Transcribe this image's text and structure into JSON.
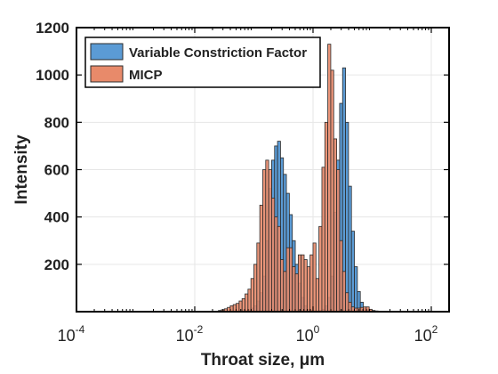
{
  "chart_data": {
    "type": "bar",
    "subtype": "overlaid-histogram",
    "title": "",
    "xlabel": "Throat size,  μm",
    "ylabel": "Intensity",
    "xscale": "log",
    "xlim": [
      0.0001,
      200
    ],
    "ylim": [
      0,
      1200
    ],
    "grid": true,
    "legend_position": "top-left",
    "x_ticks": [
      {
        "value": 0.0001,
        "base": "10",
        "exp": "-4"
      },
      {
        "value": 0.01,
        "base": "10",
        "exp": "-2"
      },
      {
        "value": 1,
        "base": "10",
        "exp": "0"
      },
      {
        "value": 100,
        "base": "10",
        "exp": "2"
      }
    ],
    "y_ticks": [
      {
        "value": 200,
        "label": "200"
      },
      {
        "value": 400,
        "label": "400"
      },
      {
        "value": 600,
        "label": "600"
      },
      {
        "value": 800,
        "label": "800"
      },
      {
        "value": 1000,
        "label": "1000"
      },
      {
        "value": 1200,
        "label": "1200"
      }
    ],
    "bin_edges": [
      0.01,
      0.01122,
      0.01259,
      0.01413,
      0.01585,
      0.01778,
      0.01995,
      0.02239,
      0.02512,
      0.02818,
      0.03162,
      0.03548,
      0.03981,
      0.04467,
      0.05012,
      0.05623,
      0.0631,
      0.07079,
      0.07943,
      0.08913,
      0.1,
      0.1122,
      0.1259,
      0.1413,
      0.1585,
      0.1778,
      0.1995,
      0.2239,
      0.2512,
      0.2818,
      0.3162,
      0.3548,
      0.3981,
      0.4467,
      0.5012,
      0.5623,
      0.631,
      0.7079,
      0.7943,
      0.8913,
      1.0,
      1.122,
      1.259,
      1.413,
      1.585,
      1.778,
      1.995,
      2.239,
      2.512,
      2.818,
      3.162,
      3.548,
      3.981,
      4.467,
      5.012,
      5.623,
      6.31,
      7.079,
      7.943,
      8.913,
      10.0,
      11.22,
      12.59,
      14.13,
      15.85,
      17.78,
      19.95,
      22.39,
      25.12,
      28.18,
      31.62,
      35.48,
      39.81,
      44.67,
      50.12,
      56.23,
      63.1,
      70.79,
      79.43,
      89.13,
      100.0
    ],
    "series": [
      {
        "name": "Variable Constriction Factor",
        "color": "#5b9bd5",
        "values": [
          0,
          0,
          0,
          0,
          0,
          0,
          0,
          0,
          0,
          0,
          0,
          0,
          0,
          0,
          0,
          0,
          2,
          4,
          8,
          15,
          25,
          45,
          80,
          150,
          300,
          520,
          640,
          700,
          720,
          650,
          580,
          500,
          410,
          300,
          200,
          120,
          60,
          25,
          10,
          5,
          3,
          3,
          5,
          10,
          25,
          60,
          150,
          420,
          640,
          880,
          1030,
          800,
          530,
          340,
          190,
          85,
          40,
          15,
          8,
          4,
          2,
          0,
          0,
          0,
          0,
          0,
          0,
          0,
          0,
          0,
          0,
          0,
          0,
          0,
          0,
          0,
          0,
          0,
          0,
          0
        ]
      },
      {
        "name": "MICP",
        "color": "#e88a6a",
        "values": [
          0,
          0,
          0,
          0,
          0,
          0,
          0,
          0,
          5,
          8,
          12,
          18,
          25,
          30,
          35,
          45,
          55,
          75,
          95,
          140,
          200,
          290,
          450,
          600,
          640,
          600,
          480,
          400,
          360,
          220,
          170,
          270,
          270,
          190,
          160,
          240,
          240,
          220,
          190,
          240,
          290,
          140,
          360,
          610,
          800,
          1130,
          1020,
          730,
          600,
          300,
          170,
          80,
          40,
          20,
          15,
          15,
          18,
          20,
          20,
          10,
          5,
          3,
          2,
          0,
          0,
          0,
          0,
          0,
          0,
          0,
          0,
          0,
          0,
          0,
          0,
          0,
          0,
          0,
          0,
          0
        ]
      }
    ]
  }
}
